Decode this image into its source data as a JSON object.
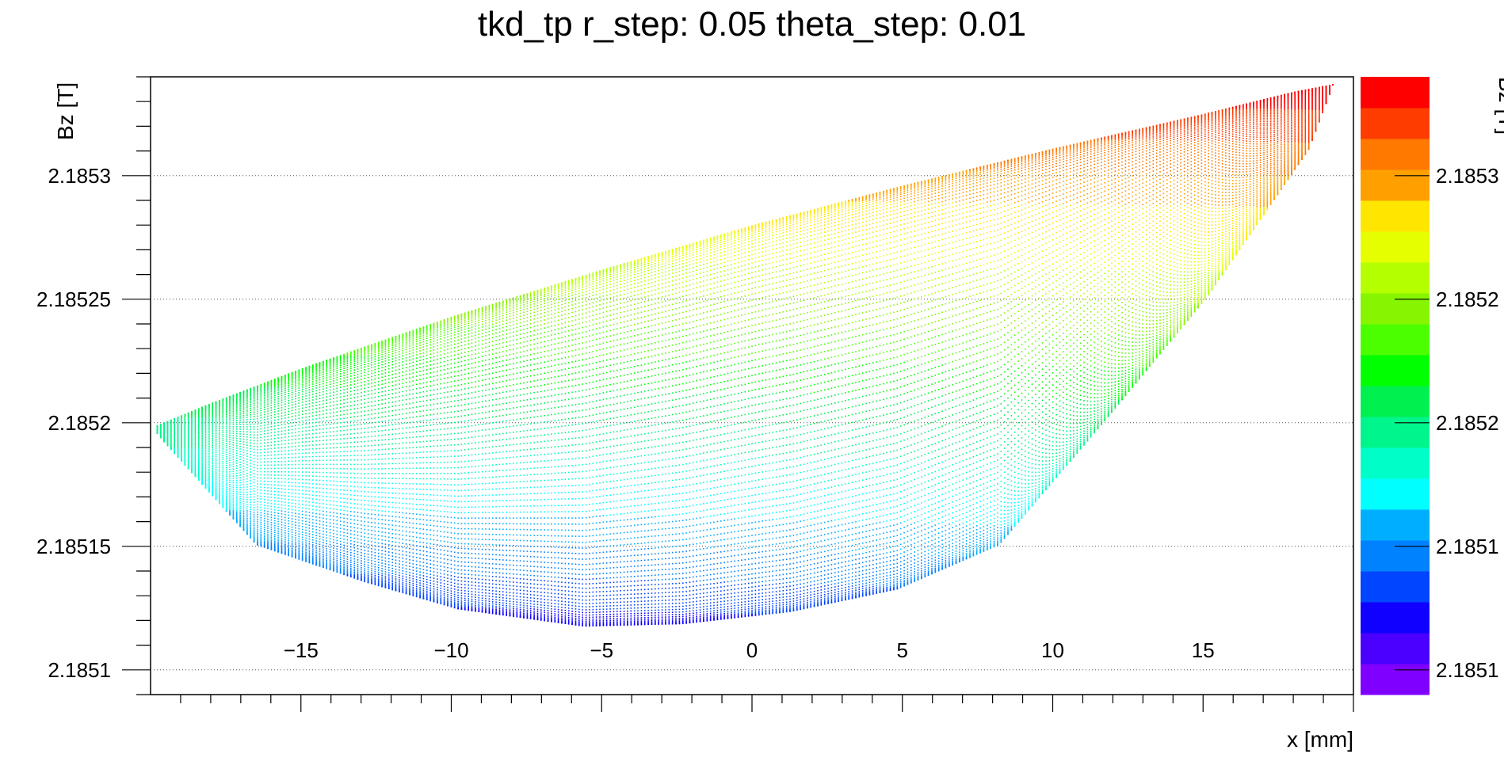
{
  "chart_data": {
    "type": "scatter",
    "title": "tkd_tp r_step: 0.05 theta_step: 0.01",
    "xlabel": "x [mm]",
    "ylabel": "Bz [T]",
    "zlabel": "Bz [T]",
    "xlim": [
      -20,
      20
    ],
    "ylim": [
      2.18509,
      2.18534
    ],
    "zlim": [
      2.18509,
      2.18534
    ],
    "x_ticks": [
      -15,
      -10,
      -5,
      0,
      5,
      10,
      15
    ],
    "x_tick_labels": [
      "−15",
      "−10",
      "−5",
      "0",
      "5",
      "10",
      "15"
    ],
    "y_ticks": [
      2.1851,
      2.18515,
      2.1852,
      2.18525,
      2.1853
    ],
    "y_tick_labels": [
      "2.1851",
      "2.18515",
      "2.1852",
      "2.18525",
      "2.1853"
    ],
    "z_tick_labels": [
      "2.1851",
      "2.1851",
      "2.1852",
      "2.1852",
      "2.1853"
    ],
    "grid": "horizontal",
    "palette": [
      "#7f00ff",
      "#4b00ff",
      "#0f00ff",
      "#0045ff",
      "#0082ff",
      "#00aeff",
      "#00ffff",
      "#00ffc8",
      "#00f58c",
      "#00f050",
      "#00ff00",
      "#4bff00",
      "#87f500",
      "#b4ff00",
      "#e6ff00",
      "#ffe600",
      "#ffa000",
      "#ff7800",
      "#ff3c00",
      "#ff0000"
    ],
    "envelope": {
      "upper": [
        [
          -19.8,
          2.185199
        ],
        [
          -18,
          2.185208
        ],
        [
          -15,
          2.185222
        ],
        [
          -10,
          2.185243
        ],
        [
          -5,
          2.185262
        ],
        [
          0,
          2.18528
        ],
        [
          5,
          2.185296
        ],
        [
          10,
          2.185311
        ],
        [
          15,
          2.185325
        ],
        [
          18,
          2.185334
        ],
        [
          19.3,
          2.185337
        ]
      ],
      "lower": [
        [
          -19.8,
          2.185196
        ],
        [
          -19.6,
          2.185193
        ],
        [
          -16.5,
          2.185151
        ],
        [
          -12.9,
          2.185136
        ],
        [
          -9.8,
          2.185125
        ],
        [
          -5.6,
          2.185118
        ],
        [
          -2.3,
          2.185119
        ],
        [
          1.3,
          2.185124
        ],
        [
          4.8,
          2.185133
        ],
        [
          8.2,
          2.185151
        ],
        [
          11.7,
          2.185201
        ],
        [
          15.1,
          2.185251
        ],
        [
          18.5,
          2.185311
        ],
        [
          19.3,
          2.185337
        ]
      ]
    }
  }
}
